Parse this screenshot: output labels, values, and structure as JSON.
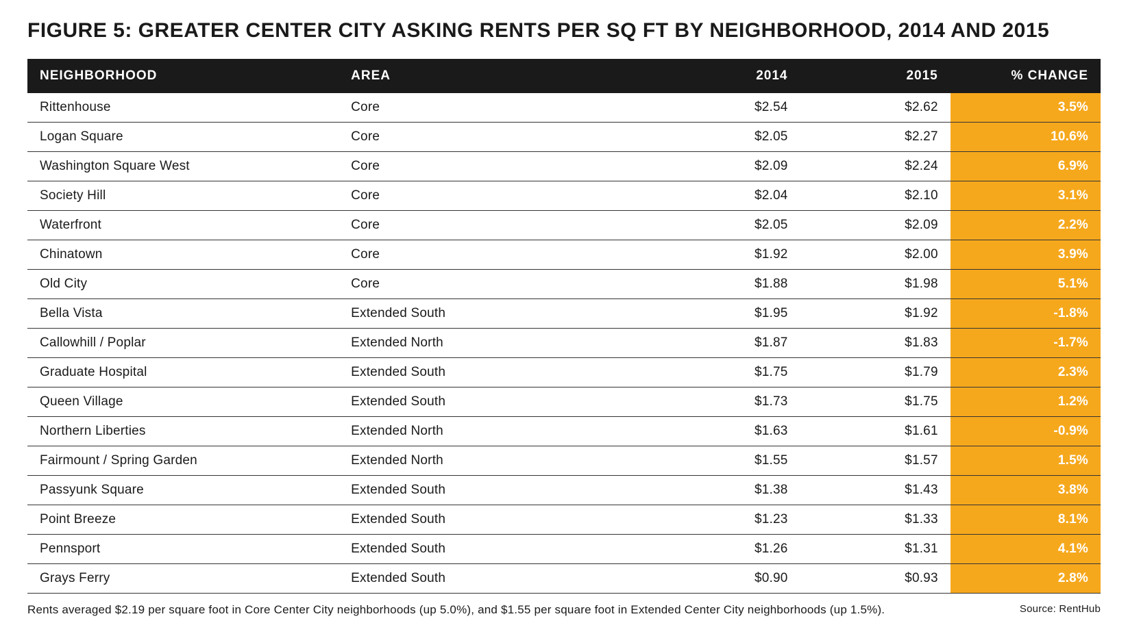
{
  "title": "FIGURE 5: GREATER CENTER CITY ASKING RENTS PER SQ FT BY NEIGHBORHOOD, 2014 AND 2015",
  "table": {
    "type": "table",
    "header_bg": "#1a1a1a",
    "header_text_color": "#ffffff",
    "row_border_color": "#333333",
    "change_col_bg": "#f6a81c",
    "change_col_text_color": "#ffffff",
    "body_text_color": "#1a1a1a",
    "header_fontsize": 19,
    "body_fontsize": 19,
    "columns": [
      {
        "key": "neighborhood",
        "label": "NEIGHBORHOOD",
        "align": "left",
        "width_pct": 29
      },
      {
        "key": "area",
        "label": "AREA",
        "align": "left",
        "width_pct": 29
      },
      {
        "key": "y2014",
        "label": "2014",
        "align": "right",
        "width_pct": 14
      },
      {
        "key": "y2015",
        "label": "2015",
        "align": "right",
        "width_pct": 14
      },
      {
        "key": "change",
        "label": "% CHANGE",
        "align": "right",
        "width_pct": 14,
        "highlight": true
      }
    ],
    "rows": [
      {
        "neighborhood": "Rittenhouse",
        "area": "Core",
        "y2014": "$2.54",
        "y2015": "$2.62",
        "change": "3.5%"
      },
      {
        "neighborhood": "Logan Square",
        "area": "Core",
        "y2014": "$2.05",
        "y2015": "$2.27",
        "change": "10.6%"
      },
      {
        "neighborhood": "Washington Square West",
        "area": "Core",
        "y2014": "$2.09",
        "y2015": "$2.24",
        "change": "6.9%"
      },
      {
        "neighborhood": "Society Hill",
        "area": "Core",
        "y2014": "$2.04",
        "y2015": "$2.10",
        "change": "3.1%"
      },
      {
        "neighborhood": "Waterfront",
        "area": "Core",
        "y2014": "$2.05",
        "y2015": "$2.09",
        "change": "2.2%"
      },
      {
        "neighborhood": "Chinatown",
        "area": "Core",
        "y2014": "$1.92",
        "y2015": "$2.00",
        "change": "3.9%"
      },
      {
        "neighborhood": "Old City",
        "area": "Core",
        "y2014": "$1.88",
        "y2015": "$1.98",
        "change": "5.1%"
      },
      {
        "neighborhood": "Bella Vista",
        "area": "Extended South",
        "y2014": "$1.95",
        "y2015": "$1.92",
        "change": "-1.8%"
      },
      {
        "neighborhood": "Callowhill / Poplar",
        "area": "Extended North",
        "y2014": "$1.87",
        "y2015": "$1.83",
        "change": "-1.7%"
      },
      {
        "neighborhood": "Graduate Hospital",
        "area": "Extended South",
        "y2014": "$1.75",
        "y2015": "$1.79",
        "change": "2.3%"
      },
      {
        "neighborhood": "Queen Village",
        "area": "Extended South",
        "y2014": "$1.73",
        "y2015": "$1.75",
        "change": "1.2%"
      },
      {
        "neighborhood": "Northern Liberties",
        "area": "Extended North",
        "y2014": "$1.63",
        "y2015": "$1.61",
        "change": "-0.9%"
      },
      {
        "neighborhood": "Fairmount / Spring Garden",
        "area": "Extended North",
        "y2014": "$1.55",
        "y2015": "$1.57",
        "change": "1.5%"
      },
      {
        "neighborhood": "Passyunk Square",
        "area": "Extended South",
        "y2014": "$1.38",
        "y2015": "$1.43",
        "change": "3.8%"
      },
      {
        "neighborhood": "Point Breeze",
        "area": "Extended South",
        "y2014": "$1.23",
        "y2015": "$1.33",
        "change": "8.1%"
      },
      {
        "neighborhood": "Pennsport",
        "area": "Extended South",
        "y2014": "$1.26",
        "y2015": "$1.31",
        "change": "4.1%"
      },
      {
        "neighborhood": "Grays Ferry",
        "area": "Extended South",
        "y2014": "$0.90",
        "y2015": "$0.93",
        "change": "2.8%"
      }
    ]
  },
  "footnote": "Rents averaged $2.19 per square foot in Core Center City neighborhoods (up 5.0%), and $1.55 per square foot in Extended Center City neighborhoods (up 1.5%).",
  "source": "Source: RentHub"
}
